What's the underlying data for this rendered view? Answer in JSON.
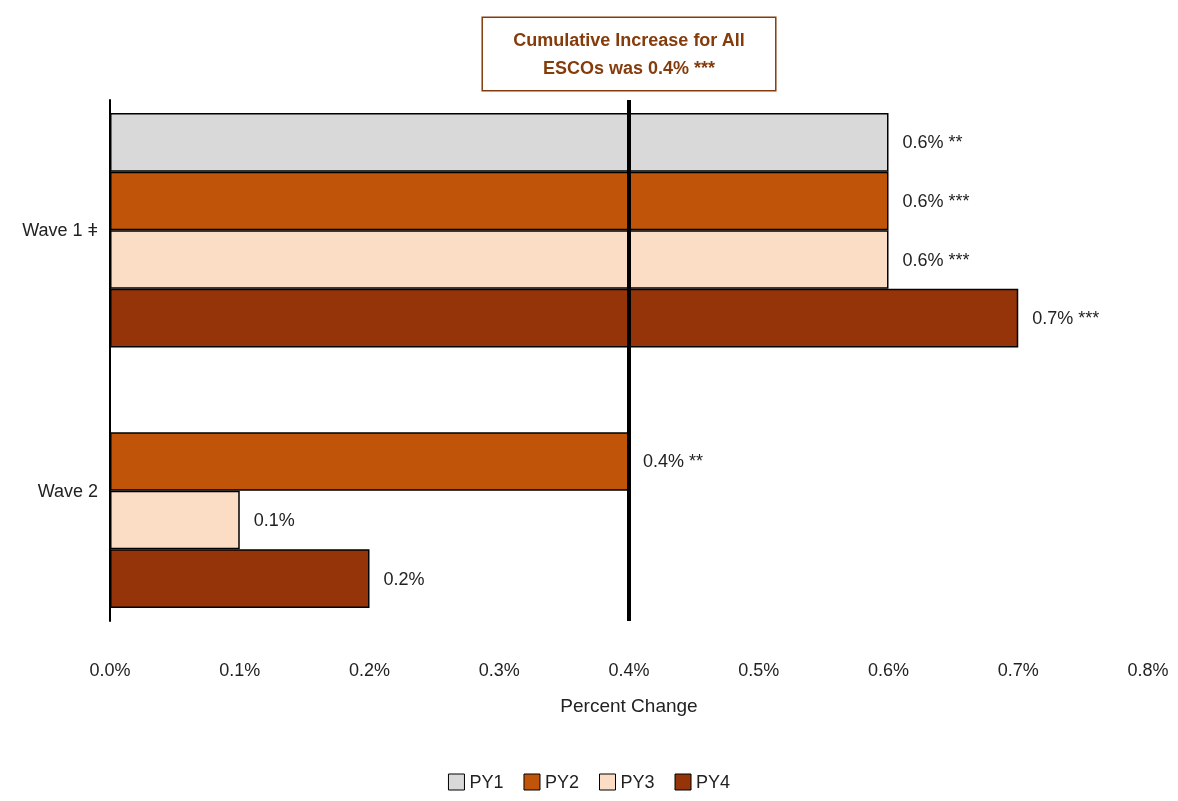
{
  "chart_data": {
    "type": "bar",
    "orientation": "horizontal",
    "xlabel": "Percent Change",
    "categories": [
      "Wave 1 ǂ",
      "Wave 2"
    ],
    "series": [
      {
        "name": "PY1",
        "color": "#d9d9d9",
        "values": [
          0.6,
          null
        ],
        "value_labels": [
          "0.6% **",
          null
        ]
      },
      {
        "name": "PY2",
        "color": "#c0550a",
        "values": [
          0.6,
          0.4
        ],
        "value_labels": [
          "0.6% ***",
          "0.4% **"
        ]
      },
      {
        "name": "PY3",
        "color": "#fbdcc4",
        "values": [
          0.6,
          0.1
        ],
        "value_labels": [
          "0.6% ***",
          "0.1%"
        ]
      },
      {
        "name": "PY4",
        "color": "#943408",
        "values": [
          0.7,
          0.2
        ],
        "value_labels": [
          "0.7% ***",
          "0.2%"
        ]
      }
    ],
    "xlim": [
      0,
      0.8
    ],
    "xticks": [
      {
        "value": 0,
        "label": "0.0%"
      },
      {
        "value": 0.1,
        "label": "0.1%"
      },
      {
        "value": 0.2,
        "label": "0.2%"
      },
      {
        "value": 0.3,
        "label": "0.3%"
      },
      {
        "value": 0.4,
        "label": "0.4%"
      },
      {
        "value": 0.5,
        "label": "0.5%"
      },
      {
        "value": 0.6,
        "label": "0.6%"
      },
      {
        "value": 0.7,
        "label": "0.7%"
      },
      {
        "value": 0.8,
        "label": "0.8%"
      }
    ],
    "ref_lines": [
      {
        "axis": "x",
        "value": 0.4,
        "label": "Cumulative Increase for All\nESCOs was 0.4% ***",
        "color": "#000000"
      }
    ],
    "grid": false,
    "legend": "bottom"
  }
}
